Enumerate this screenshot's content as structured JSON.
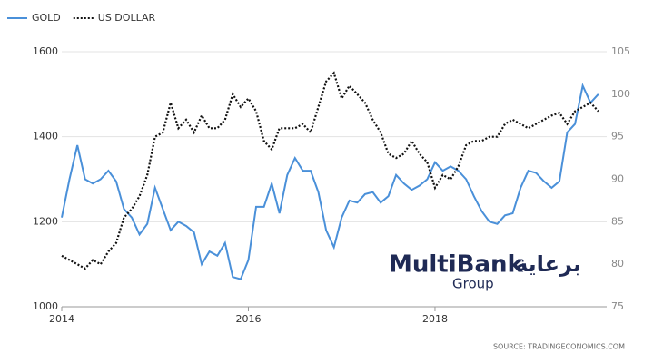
{
  "chart_data": {
    "type": "line",
    "xlim": [
      2014,
      2019.84
    ],
    "xticks": [
      2014,
      2016,
      2018
    ],
    "ylim": [
      1000,
      1600
    ],
    "yticks": [
      1000,
      1200,
      1400,
      1600
    ],
    "y2lim": [
      75,
      105
    ],
    "y2ticks": [
      75,
      80,
      85,
      90,
      95,
      100,
      105
    ],
    "grid": true,
    "legend": "top-left",
    "source": "SOURCE: TRADINGECONOMICS.COM",
    "watermark": {
      "brand": "MultiBank",
      "sub": "Group",
      "arabic": "برعاية"
    },
    "x": [
      2014,
      2014.083,
      2014.167,
      2014.25,
      2014.333,
      2014.417,
      2014.5,
      2014.583,
      2014.667,
      2014.75,
      2014.833,
      2014.917,
      2015,
      2015.083,
      2015.167,
      2015.25,
      2015.333,
      2015.417,
      2015.5,
      2015.583,
      2015.667,
      2015.75,
      2015.833,
      2015.917,
      2016,
      2016.083,
      2016.167,
      2016.25,
      2016.333,
      2016.417,
      2016.5,
      2016.583,
      2016.667,
      2016.75,
      2016.833,
      2016.917,
      2017,
      2017.083,
      2017.167,
      2017.25,
      2017.333,
      2017.417,
      2017.5,
      2017.583,
      2017.667,
      2017.75,
      2017.833,
      2017.917,
      2018,
      2018.083,
      2018.167,
      2018.25,
      2018.333,
      2018.417,
      2018.5,
      2018.583,
      2018.667,
      2018.75,
      2018.833,
      2018.917,
      2019,
      2019.083,
      2019.167,
      2019.25,
      2019.333,
      2019.417,
      2019.5,
      2019.583,
      2019.667,
      2019.75
    ],
    "series": [
      {
        "name": "GOLD",
        "color": "#4a90d9",
        "dash": "solid",
        "values": [
          1210,
          1300,
          1380,
          1300,
          1290,
          1300,
          1320,
          1295,
          1230,
          1210,
          1170,
          1195,
          1280,
          1230,
          1180,
          1200,
          1190,
          1175,
          1100,
          1130,
          1120,
          1150,
          1070,
          1065,
          1110,
          1235,
          1235,
          1290,
          1220,
          1310,
          1350,
          1320,
          1320,
          1270,
          1180,
          1140,
          1210,
          1250,
          1245,
          1265,
          1270,
          1245,
          1260,
          1310,
          1290,
          1275,
          1285,
          1300,
          1340,
          1320,
          1330,
          1320,
          1300,
          1260,
          1225,
          1200,
          1195,
          1215,
          1220,
          1280,
          1320,
          1315,
          1295,
          1280,
          1295,
          1410,
          1430,
          1520,
          1480,
          1500
        ]
      },
      {
        "name": "US DOLLAR",
        "color": "#111111",
        "dash": "dotted",
        "axis": "y2",
        "values": [
          81,
          80.5,
          80,
          79.5,
          80.5,
          80,
          81.5,
          82.5,
          85.5,
          86.5,
          88,
          90.5,
          95,
          95.5,
          99,
          96,
          97,
          95.5,
          97.5,
          96,
          96,
          97,
          100,
          98.5,
          99.5,
          98,
          94.5,
          93.5,
          96,
          96,
          96,
          96.5,
          95.5,
          98.5,
          101.5,
          102.5,
          99.5,
          101,
          100,
          99,
          97,
          95.5,
          93,
          92.5,
          93,
          94.5,
          93,
          92,
          89,
          90.5,
          90,
          91.5,
          94,
          94.5,
          94.5,
          95,
          95,
          96.5,
          97,
          96.5,
          96,
          96.5,
          97,
          97.5,
          97.8,
          96.5,
          98,
          98.5,
          99,
          98
        ]
      }
    ]
  }
}
